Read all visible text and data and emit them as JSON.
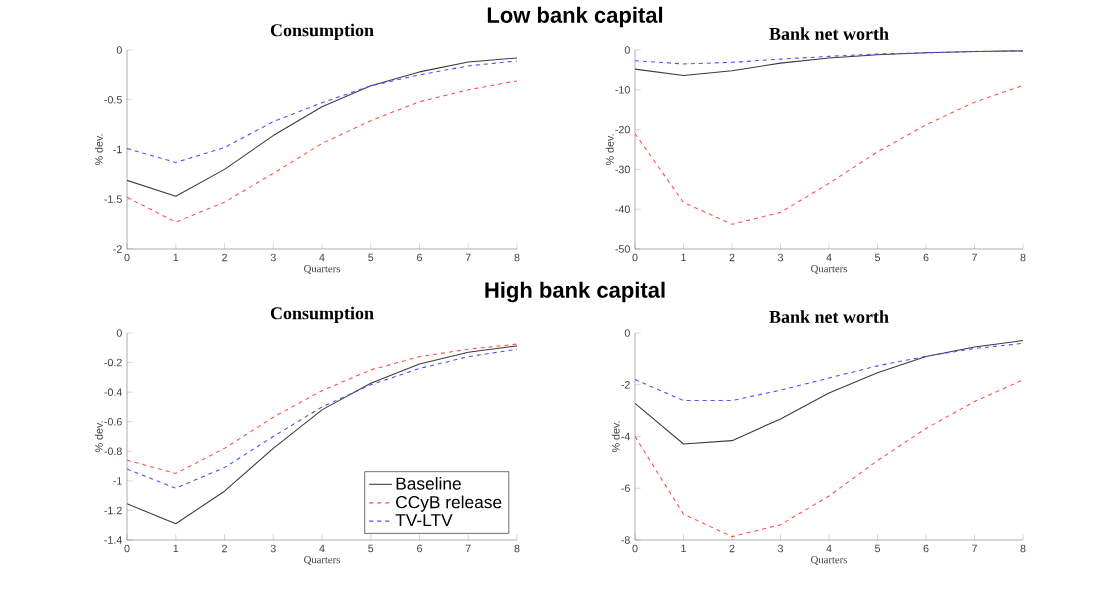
{
  "chart_data": [
    {
      "type": "line",
      "title": "Consumption",
      "xlabel": "Quarters",
      "ylabel": "% dev.",
      "annotations": [
        "Low bank capital"
      ],
      "x": [
        0,
        1,
        2,
        3,
        4,
        5,
        6,
        7,
        8
      ],
      "xlim": [
        0,
        8
      ],
      "xticks": [
        0,
        1,
        2,
        3,
        4,
        5,
        6,
        7,
        8
      ],
      "ylim": [
        -2,
        0
      ],
      "yticks": [
        -2,
        -1.5,
        -1,
        -0.5,
        0
      ],
      "series": [
        {
          "color": "#3c3c3c",
          "line_style": "solid",
          "values": [
            -1.31,
            -1.47,
            -1.2,
            -0.86,
            -0.57,
            -0.36,
            -0.22,
            -0.12,
            -0.08
          ]
        },
        {
          "color": "#ff4d4d",
          "line_style": "dashed",
          "values": [
            -1.48,
            -1.73,
            -1.53,
            -1.24,
            -0.94,
            -0.71,
            -0.52,
            -0.4,
            -0.31
          ]
        },
        {
          "color": "#4d4dff",
          "line_style": "dashed",
          "values": [
            -0.99,
            -1.13,
            -0.98,
            -0.72,
            -0.53,
            -0.36,
            -0.25,
            -0.16,
            -0.11
          ]
        }
      ]
    },
    {
      "type": "line",
      "title": "Bank net worth",
      "xlabel": "Quarters",
      "ylabel": "% dev.",
      "x": [
        0,
        1,
        2,
        3,
        4,
        5,
        6,
        7,
        8
      ],
      "xlim": [
        0,
        8
      ],
      "xticks": [
        0,
        1,
        2,
        3,
        4,
        5,
        6,
        7,
        8
      ],
      "ylim": [
        -50,
        0
      ],
      "yticks": [
        -50,
        -40,
        -30,
        -20,
        -10,
        0
      ],
      "series": [
        {
          "color": "#3c3c3c",
          "line_style": "solid",
          "values": [
            -4.8,
            -6.4,
            -5.2,
            -3.3,
            -2,
            -1.2,
            -0.7,
            -0.4,
            -0.2
          ]
        },
        {
          "color": "#ff4d4d",
          "line_style": "dashed",
          "values": [
            -21,
            -38.3,
            -43.8,
            -40.8,
            -33.5,
            -25.6,
            -18.8,
            -13.1,
            -8.9
          ]
        },
        {
          "color": "#4d4dff",
          "line_style": "dashed",
          "values": [
            -2.7,
            -3.5,
            -3.1,
            -2.3,
            -1.6,
            -1,
            -0.7,
            -0.4,
            -0.3
          ]
        }
      ]
    },
    {
      "type": "line",
      "title": "Consumption",
      "xlabel": "Quarters",
      "ylabel": "% dev.",
      "annotations": [
        "High bank capital"
      ],
      "legend": "bottom right",
      "x": [
        0,
        1,
        2,
        3,
        4,
        5,
        6,
        7,
        8
      ],
      "xlim": [
        0,
        8
      ],
      "xticks": [
        0,
        1,
        2,
        3,
        4,
        5,
        6,
        7,
        8
      ],
      "ylim": [
        -1.4,
        0
      ],
      "yticks": [
        -1.4,
        -1.2,
        -1,
        -0.8,
        -0.6,
        -0.4,
        -0.2,
        0
      ],
      "series": [
        {
          "name": "Baseline",
          "color": "#3c3c3c",
          "line_style": "solid",
          "values": [
            -1.155,
            -1.29,
            -1.07,
            -0.78,
            -0.52,
            -0.34,
            -0.21,
            -0.13,
            -0.087
          ]
        },
        {
          "name": "CCyB release",
          "color": "#ff4d4d",
          "line_style": "dashed",
          "values": [
            -0.86,
            -0.95,
            -0.78,
            -0.57,
            -0.39,
            -0.25,
            -0.16,
            -0.11,
            -0.075
          ]
        },
        {
          "name": "TV-LTV",
          "color": "#4d4dff",
          "line_style": "dashed",
          "values": [
            -0.92,
            -1.05,
            -0.91,
            -0.7,
            -0.5,
            -0.35,
            -0.24,
            -0.16,
            -0.11
          ]
        }
      ]
    },
    {
      "type": "line",
      "title": "Bank net worth",
      "xlabel": "Quarters",
      "ylabel": "% dev.",
      "x": [
        0,
        1,
        2,
        3,
        4,
        5,
        6,
        7,
        8
      ],
      "xlim": [
        0,
        8
      ],
      "xticks": [
        0,
        1,
        2,
        3,
        4,
        5,
        6,
        7,
        8
      ],
      "ylim": [
        -8,
        0
      ],
      "yticks": [
        -8,
        -6,
        -4,
        -2,
        0
      ],
      "series": [
        {
          "color": "#3c3c3c",
          "line_style": "solid",
          "values": [
            -2.72,
            -4.29,
            -4.16,
            -3.32,
            -2.32,
            -1.54,
            -0.91,
            -0.54,
            -0.29
          ]
        },
        {
          "color": "#ff4d4d",
          "line_style": "dashed",
          "values": [
            -4,
            -7,
            -7.87,
            -7.41,
            -6.3,
            -4.93,
            -3.69,
            -2.65,
            -1.81
          ]
        },
        {
          "color": "#4d4dff",
          "line_style": "dashed",
          "values": [
            -1.8,
            -2.61,
            -2.61,
            -2.21,
            -1.74,
            -1.27,
            -0.9,
            -0.6,
            -0.4
          ]
        }
      ]
    }
  ]
}
